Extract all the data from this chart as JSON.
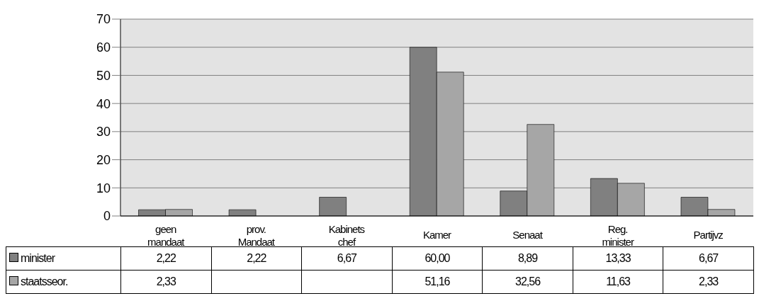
{
  "chart_data": {
    "type": "bar",
    "categories": [
      "geen mandaat",
      "prov. Mandaat",
      "Kabinets chef",
      "Kamer",
      "Senaat",
      "Reg. minister",
      "Partijvz"
    ],
    "series": [
      {
        "name": "minister",
        "color": "#808080",
        "values": [
          2.22,
          2.22,
          6.67,
          60.0,
          8.89,
          13.33,
          6.67
        ],
        "value_labels": [
          "2,22",
          "2,22",
          "6,67",
          "60,00",
          "8,89",
          "13,33",
          "6,67"
        ]
      },
      {
        "name": "staatsseor.",
        "color": "#a6a6a6",
        "values": [
          2.33,
          null,
          null,
          51.16,
          32.56,
          11.63,
          2.33
        ],
        "value_labels": [
          "2,33",
          null,
          null,
          "51,16",
          "32,56",
          "11,63",
          "2,33"
        ]
      }
    ],
    "ylim": [
      0,
      70
    ],
    "yticks": [
      0,
      10,
      20,
      30,
      40,
      50,
      60,
      70
    ],
    "grid": "y",
    "legend": "bottom left"
  }
}
